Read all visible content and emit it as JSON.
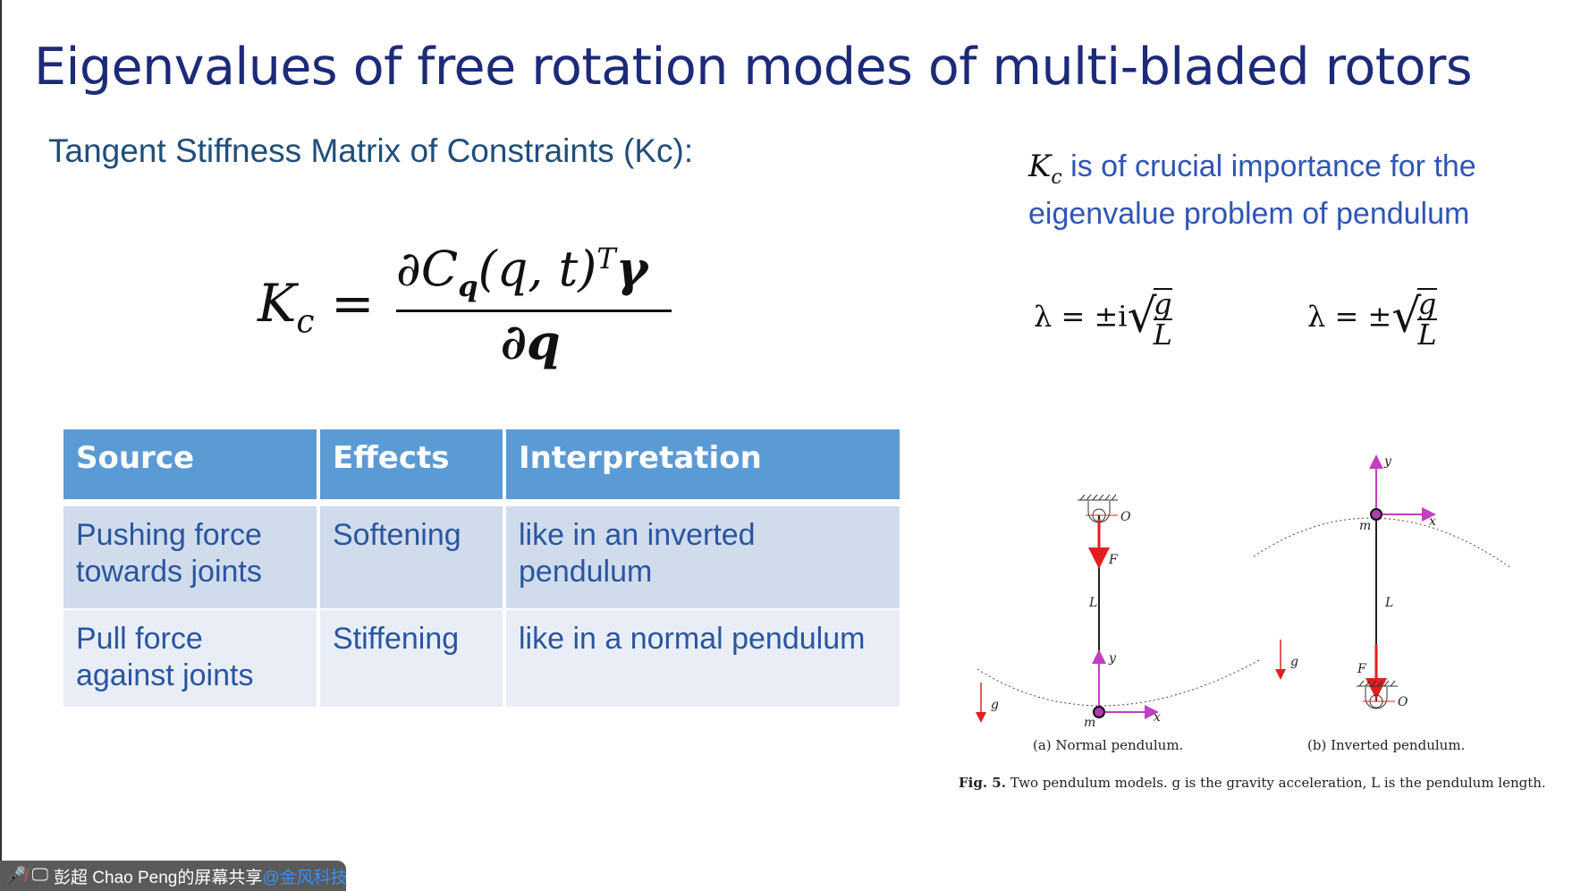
{
  "slide": {
    "title": "Eigenvalues of free rotation modes of multi-bladed rotors",
    "subtitle": "Tangent Stiffness Matrix of Constraints (Kc):",
    "formula": {
      "lhs": "K",
      "lhs_sub": "c",
      "eq": "=",
      "num": "∂C",
      "num_sub": "q",
      "num_mid": "(q, t)",
      "num_sup": "T",
      "num_end": "γ",
      "den": "∂q"
    },
    "note": {
      "symbol": "K",
      "symbol_sub": "c",
      "text": " is of crucial importance for the eigenvalue problem of pendulum"
    },
    "eigen1": {
      "prefix": "λ = ±i",
      "num": "g",
      "den": "L"
    },
    "eigen2": {
      "prefix": "λ = ±",
      "num": "g",
      "den": "L"
    },
    "table": {
      "headers": [
        "Source",
        "Effects",
        "Interpretation"
      ],
      "rows": [
        [
          "Pushing force towards joints",
          "Softening",
          "like in an inverted pendulum"
        ],
        [
          "Pull force against joints",
          "Stiffening",
          "like in a normal pendulum"
        ]
      ],
      "colors": {
        "header": "#5b9bd5",
        "row1": "#d0dcec",
        "row2": "#e9eef6",
        "text": "#2a55a0"
      }
    },
    "figure": {
      "labels": {
        "O": "O",
        "m": "m",
        "L": "L",
        "Fc": "F",
        "Fc_sub": "c",
        "x": "x",
        "y": "y",
        "g": "g"
      },
      "caption_a": "(a) Normal pendulum.",
      "caption_b": "(b) Inverted pendulum.",
      "caption_bold": "Fig. 5.",
      "caption": " Two pendulum models. g is the gravity acceleration, L is the pendulum length."
    }
  },
  "share_bar": {
    "mic_icon": "mic-muted-icon",
    "screen_icon": "screen-share-icon",
    "text": "彭超 Chao Peng的屏幕共享",
    "tag": "@金风科技"
  }
}
